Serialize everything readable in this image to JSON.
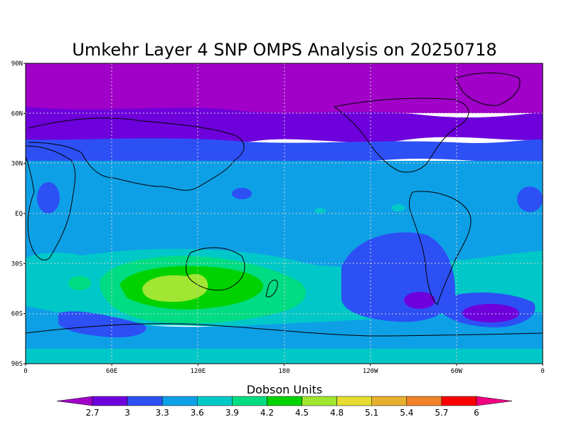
{
  "title": "Umkehr Layer 4 SNP OMPS Analysis on 20250718",
  "colorbar_title": "Dobson Units",
  "lat_ticks": [
    "90N",
    "60N",
    "30N",
    "EQ",
    "30S",
    "60S",
    "90S"
  ],
  "lon_ticks": [
    "0",
    "60E",
    "120E",
    "180",
    "120W",
    "60W",
    "0"
  ],
  "levels": [
    "2.7",
    "3",
    "3.3",
    "3.6",
    "3.9",
    "4.2",
    "4.5",
    "4.8",
    "5.1",
    "5.4",
    "5.7",
    "6"
  ],
  "palette": {
    "under": "#a000c8",
    "bins": [
      "#6e00dc",
      "#2d50f5",
      "#0ea0e6",
      "#00c8c8",
      "#00dc82",
      "#00d200",
      "#a0e632",
      "#e6dc32",
      "#e6af2d",
      "#f08228",
      "#fa0000"
    ],
    "over": "#f00082"
  },
  "chart_data": {
    "type": "heatmap",
    "title": "Umkehr Layer 4 SNP OMPS Analysis on 20250718",
    "units": "Dobson Units",
    "xlabel": "",
    "ylabel": "",
    "x_range": [
      "0",
      "360"
    ],
    "y_range": [
      "90S",
      "90N"
    ],
    "colorbar_levels": [
      2.7,
      3,
      3.3,
      3.6,
      3.9,
      4.2,
      4.5,
      4.8,
      5.1,
      5.4,
      5.7,
      6
    ],
    "regions": [
      {
        "name": "",
        "lat": [
          60,
          90
        ],
        "value": 2.8
      },
      {
        "name": "",
        "lat": [
          45,
          60
        ],
        "value": 3.1
      },
      {
        "name": "",
        "lat": [
          25,
          45
        ],
        "value": 3.4
      },
      {
        "name": "",
        "lat": [
          -25,
          25
        ],
        "value": 3.6
      },
      {
        "name": "",
        "lat": [
          -50,
          -25
        ],
        "value": 3.8
      },
      {
        "name": "",
        "lat": [
          -65,
          -50
        ],
        "value": 3.5
      },
      {
        "name": "",
        "lat": [
          -90,
          -65
        ],
        "value": 3.7
      }
    ],
    "features": [
      {
        "lon": 100,
        "lat": -45,
        "value": 4.6
      },
      {
        "lon": 120,
        "lat": -45,
        "value": 4.3
      },
      {
        "lon": 250,
        "lat": -45,
        "value": 3.2
      },
      {
        "lon": 280,
        "lat": -55,
        "value": 2.9
      },
      {
        "lon": 310,
        "lat": -60,
        "value": 2.9
      }
    ]
  }
}
